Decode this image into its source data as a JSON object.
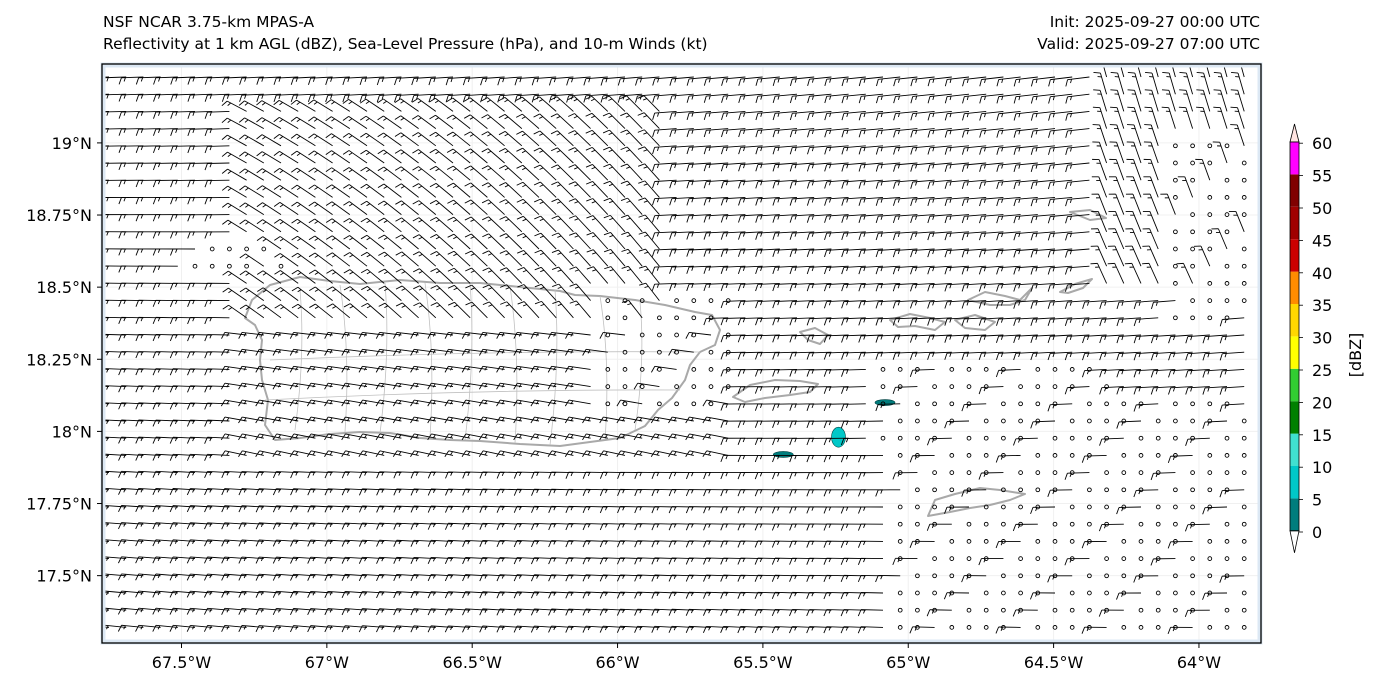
{
  "titles": {
    "left_line1": "NSF NCAR 3.75-km MPAS-A",
    "left_line2": "Reflectivity at 1 km AGL (dBZ), Sea-Level Pressure (hPa), and 10-m Winds (kt)",
    "right_line1": "Init: 2025-09-27 00:00 UTC",
    "right_line2": "Valid: 2025-09-27 07:00 UTC"
  },
  "map": {
    "lon_range": [
      -67.77,
      -63.79
    ],
    "lat_range": [
      17.27,
      19.27
    ],
    "lon_ticks": [
      {
        "value": -67.5,
        "label": "67.5°W"
      },
      {
        "value": -67.0,
        "label": "67°W"
      },
      {
        "value": -66.5,
        "label": "66.5°W"
      },
      {
        "value": -66.0,
        "label": "66°W"
      },
      {
        "value": -65.5,
        "label": "65.5°W"
      },
      {
        "value": -65.0,
        "label": "65°W"
      },
      {
        "value": -64.5,
        "label": "64.5°W"
      },
      {
        "value": -64.0,
        "label": "64°W"
      }
    ],
    "lat_ticks": [
      {
        "value": 19.0,
        "label": "19°N"
      },
      {
        "value": 18.75,
        "label": "18.75°N"
      },
      {
        "value": 18.5,
        "label": "18.5°N"
      },
      {
        "value": 18.25,
        "label": "18.25°N"
      },
      {
        "value": 18.0,
        "label": "18°N"
      },
      {
        "value": 17.75,
        "label": "17.75°N"
      },
      {
        "value": 17.5,
        "label": "17.5°N"
      }
    ],
    "colors": {
      "ocean_border": "#dce8f4",
      "coast": "#a9a9a9",
      "barb": "#000000"
    },
    "echoes": [
      {
        "lon": -65.24,
        "lat": 17.98,
        "dbz": 12,
        "color": "#00c8c8"
      },
      {
        "lon": -65.43,
        "lat": 17.92,
        "dbz": 3,
        "color": "#007d7d"
      },
      {
        "lon": -65.08,
        "lat": 18.1,
        "dbz": 3,
        "color": "#007d7d"
      }
    ]
  },
  "colorbar": {
    "label": "[dBZ]",
    "ticks": [
      "0",
      "5",
      "10",
      "15",
      "20",
      "25",
      "30",
      "35",
      "40",
      "45",
      "50",
      "55",
      "60"
    ],
    "colors": [
      "#007d7d",
      "#00c8c8",
      "#40e0d0",
      "#008000",
      "#32cd32",
      "#ffff00",
      "#ffd700",
      "#ff8c00",
      "#cc0000",
      "#a00000",
      "#800000",
      "#ff00ff",
      "#ffe4e1"
    ]
  }
}
